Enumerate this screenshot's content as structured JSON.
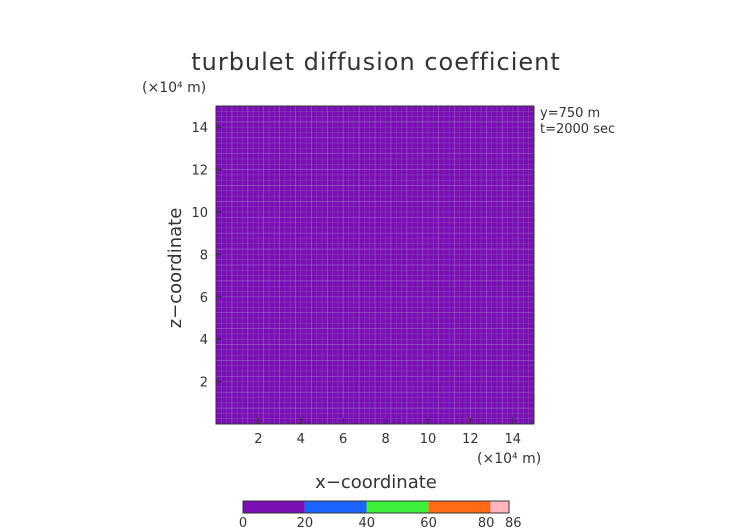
{
  "chart_data": {
    "type": "heatmap",
    "title": "turbulet diffusion coefficient",
    "xlabel": "x−coordinate",
    "ylabel": "z−coordinate",
    "x_unit": "(×10⁴ m)",
    "y_unit": "(×10⁴ m)",
    "xlim": [
      0,
      15
    ],
    "ylim": [
      0,
      15
    ],
    "xticks": [
      2,
      4,
      6,
      8,
      10,
      12,
      14
    ],
    "yticks": [
      2,
      4,
      6,
      8,
      10,
      12,
      14
    ],
    "annotations": [
      "y=750  m",
      "t=2000  sec"
    ],
    "field": {
      "description_value": 5,
      "uniform": true
    },
    "colorbar": {
      "ticks": [
        "0",
        "20",
        "40",
        "60",
        "80",
        "86"
      ],
      "segments": [
        {
          "from": 0,
          "to": 20,
          "color": "#7a0fb4"
        },
        {
          "from": 20,
          "to": 40,
          "color": "#1e64ff"
        },
        {
          "from": 40,
          "to": 60,
          "color": "#3cf03c"
        },
        {
          "from": 60,
          "to": 80,
          "color": "#ff6a14"
        },
        {
          "from": 80,
          "to": 86,
          "color": "#ffb4be"
        }
      ]
    },
    "colors": {
      "field": "#7a0fb4",
      "grid": "#a98bd0"
    }
  }
}
